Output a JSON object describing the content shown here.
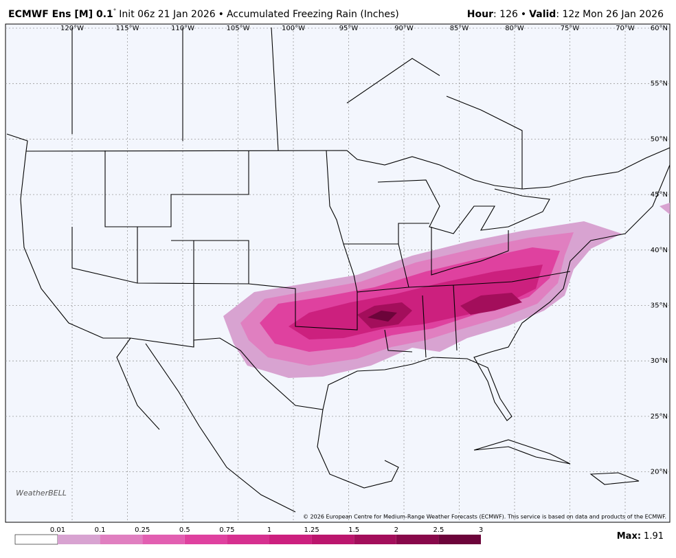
{
  "header": {
    "model": "ECMWF Ens [M] 0.1",
    "degree": "°",
    "init": "Init 06z 21 Jan 2026",
    "separator": "•",
    "product": "Accumulated Freezing Rain (Inches)",
    "hour_label": "Hour",
    "hour_value": ": 126",
    "valid_label": "Valid",
    "valid_value": ": 12z Mon 26 Jan 2026"
  },
  "map": {
    "longitudes": [
      "120°W",
      "115°W",
      "110°W",
      "105°W",
      "100°W",
      "95°W",
      "90°W",
      "85°W",
      "80°W",
      "75°W",
      "70°W"
    ],
    "latitudes": [
      "60°N",
      "55°N",
      "50°N",
      "45°N",
      "40°N",
      "35°N",
      "30°N",
      "25°N",
      "20°N"
    ],
    "background": "#f3f6fd"
  },
  "logo": "WeatherBELL",
  "copyright": "© 2026 European Centre for Medium-Range Weather Forecasts (ECMWF). This service is based on data and products of the ECMWF.",
  "colorbar": {
    "levels": [
      0.01,
      0.1,
      0.25,
      0.5,
      0.75,
      1,
      1.25,
      1.5,
      2,
      2.5,
      3
    ],
    "colors": [
      "#d8a3d1",
      "#e07fc0",
      "#e25fb1",
      "#df419f",
      "#d6308f",
      "#cc207e",
      "#bb166d",
      "#a30e5b",
      "#88084a",
      "#6c043a"
    ]
  },
  "max": {
    "label": "Max",
    "value": 1.91
  }
}
